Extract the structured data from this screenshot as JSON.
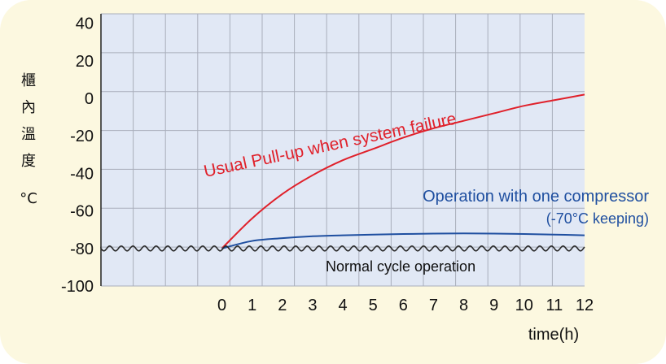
{
  "chart_data": {
    "type": "line",
    "xlabel": "time(h)",
    "ylabel": [
      "櫃",
      "內",
      "溫",
      "度",
      "°C"
    ],
    "xlim": [
      -4,
      12
    ],
    "ylim": [
      -100,
      45
    ],
    "x_ticks": [
      "0",
      "1",
      "2",
      "3",
      "4",
      "5",
      "6",
      "7",
      "8",
      "9",
      "10",
      "11",
      "12"
    ],
    "y_ticks": [
      "40",
      "20",
      "0",
      "-20",
      "-40",
      "-60",
      "-80",
      "-100"
    ],
    "grid": true,
    "series": [
      {
        "name": "Usual Pull-up when system failure",
        "color": "#e0202a",
        "x": [
          0,
          1,
          2,
          3,
          4,
          5,
          6,
          7,
          8,
          9,
          10,
          11,
          12
        ],
        "y": [
          -80,
          -64,
          -51,
          -41,
          -33,
          -27,
          -21,
          -16,
          -12,
          -8,
          -4,
          -1,
          2
        ]
      },
      {
        "name": "Operation with one compressor (-70°C keeping)",
        "color": "#1f4fa0",
        "x": [
          0,
          1,
          2,
          3,
          4,
          5,
          6,
          7,
          8,
          9,
          10,
          11,
          12
        ],
        "y": [
          -80,
          -76,
          -74.5,
          -73.5,
          -73,
          -72.6,
          -72.3,
          -72.1,
          -72,
          -72.1,
          -72.3,
          -72.6,
          -73
        ]
      },
      {
        "name": "Normal cycle operation",
        "color": "#2a2a2a",
        "x": [
          -4,
          12
        ],
        "y": [
          -80,
          -80
        ],
        "style": "wavy"
      }
    ],
    "annotations": {
      "usual": "Usual Pull-up when system failure",
      "one_comp_1": "Operation with one compressor",
      "one_comp_2": "(-70°C keeping)",
      "normal": "Normal cycle operation"
    }
  }
}
